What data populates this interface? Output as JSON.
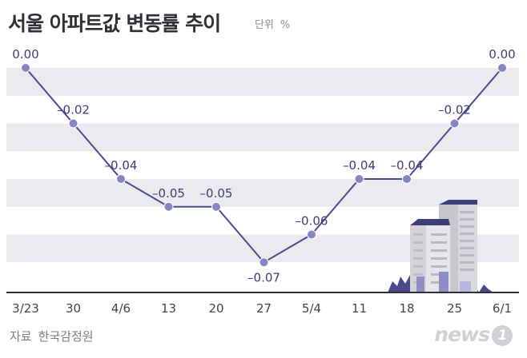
{
  "header": {
    "title": "서울 아파트값 변동률 추이",
    "unit_label": "단위",
    "unit": "%"
  },
  "footer": {
    "source_label": "자료",
    "source": "한국감정원",
    "brand": "news",
    "brand_mark": "1"
  },
  "colors": {
    "line": "#4a4a8c",
    "marker": "#8585c0",
    "band": "#ebebef",
    "axis": "#2f2f36"
  },
  "chart_data": {
    "type": "line",
    "title": "서울 아파트값 변동률 추이",
    "xlabel": "",
    "ylabel": "",
    "categories": [
      "3/23",
      "30",
      "4/6",
      "13",
      "20",
      "27",
      "5/4",
      "11",
      "18",
      "25",
      "6/1"
    ],
    "values": [
      0.0,
      -0.02,
      -0.04,
      -0.05,
      -0.05,
      -0.07,
      -0.06,
      -0.04,
      -0.04,
      -0.02,
      0.0
    ],
    "value_labels": [
      "0.00",
      "–0.02",
      "–0.04",
      "–0.05",
      "–0.05",
      "–0.07",
      "–0.06",
      "–0.04",
      "–0.04",
      "–0.02",
      "0.00"
    ],
    "ylim": [
      -0.08,
      0.0
    ],
    "grid": "horizontal bands"
  }
}
